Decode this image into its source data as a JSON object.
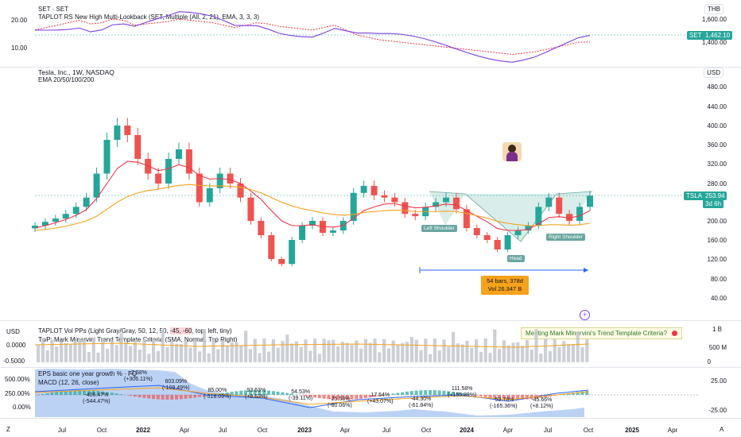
{
  "set_pane": {
    "title": "SET · SET",
    "indicator": "TAPLOT RS New High Multi-Lookback (SET, Multiple (All, 2, 21), EMA, 3, 3, 3)",
    "currency": "THB",
    "left_ticks": [
      "20.00",
      "10.00"
    ],
    "right_ticks": [
      "1,600.00",
      "1,400.00"
    ],
    "price_tag_symbol": "SET",
    "price_tag_value": "1,462.10"
  },
  "main_pane": {
    "title": "Tesla, Inc., 1W, NASDAQ",
    "subtitle": "EMA 20/50/100/200",
    "currency": "USD",
    "y_ticks": [
      "480.00",
      "440.00",
      "400.00",
      "360.00",
      "320.00",
      "280.00",
      "200.00",
      "160.00",
      "120.00",
      "80.00",
      "40.00"
    ],
    "price_tag_symbol": "TSLA",
    "price_tag_value": "253.94",
    "price_tag_time": "3d 6h",
    "annotations": {
      "left_shoulder": "Left Shoulder",
      "head": "Head",
      "right_shoulder": "Right Shoulder"
    },
    "range_info": {
      "bars": "54 bars, 378d",
      "vol": "Vol 26.347 B"
    }
  },
  "volume_pane": {
    "indicator": "TAPLOT Vol PPs (Light Gray/Gray, 50, 12, 50, -45, -60, top, left, tiny)",
    "indicator_parts": [
      "TAPLOT Vol PPs (Light Gray/Gray, 50, 12, 50, ",
      "-45, -60",
      ", top, left, tiny)"
    ],
    "subtitle": "TwP: Mark Minervini Trend Template Criteria (SMA, Normal, Top Right)",
    "left_currency": "USD",
    "left_ticks": [
      "0.0000",
      "-0.5000"
    ],
    "right_ticks": [
      "1 B",
      "500 M",
      "0"
    ],
    "minervini_text": "Meeting Mark Minervini's Trend Template Criteria?"
  },
  "eps_pane": {
    "title": "EPS basic one year growth % · FQ",
    "subtitle": "MACD (12, 26, close)",
    "left_ticks": [
      "500.00%",
      "250.00%",
      "0.00%"
    ],
    "right_ticks": [
      "25.00",
      "-25.00"
    ],
    "labels": [
      {
        "top": "-2.58%",
        "bottom": "(+306.11%)"
      },
      {
        "top": "-406.47%",
        "bottom": "(-544.47%)"
      },
      {
        "top": "603.09%",
        "bottom": "(-109.49%)"
      },
      {
        "top": "85.00%",
        "bottom": "(-518.09%)"
      },
      {
        "top": "93.63%",
        "bottom": "(+8.63%)"
      },
      {
        "top": "54.53%",
        "bottom": "(-39.11%)"
      },
      {
        "top": "-25.53%",
        "bottom": "(-80.06%)"
      },
      {
        "top": "17.54%",
        "bottom": "(+43.07%)"
      },
      {
        "top": "-44.30%",
        "bottom": "(-61.84%)"
      },
      {
        "top": "111.58%",
        "bottom": "(+155.89%)"
      },
      {
        "top": "-53.78%",
        "bottom": "(-165.36%)"
      },
      {
        "top": "-45.66%",
        "bottom": "(+8.12%)"
      }
    ]
  },
  "x_axis": {
    "ticks": [
      {
        "label": "Jul",
        "bold": false
      },
      {
        "label": "Oct",
        "bold": false
      },
      {
        "label": "2022",
        "bold": true
      },
      {
        "label": "Apr",
        "bold": false
      },
      {
        "label": "Jul",
        "bold": false
      },
      {
        "label": "Oct",
        "bold": false
      },
      {
        "label": "2023",
        "bold": true
      },
      {
        "label": "Apr",
        "bold": false
      },
      {
        "label": "Jul",
        "bold": false
      },
      {
        "label": "Oct",
        "bold": false
      },
      {
        "label": "2024",
        "bold": true
      },
      {
        "label": "Apr",
        "bold": false
      },
      {
        "label": "Jul",
        "bold": false
      },
      {
        "label": "Oct",
        "bold": false
      },
      {
        "label": "2025",
        "bold": true
      },
      {
        "label": "Apr",
        "bold": false
      }
    ],
    "corner_left": "Z",
    "corner_right": "A"
  },
  "chart_data": {
    "type": "line",
    "title": "Tesla, Inc., 1W, NASDAQ",
    "ylim": [
      40,
      500
    ],
    "series": [
      {
        "name": "TSLA",
        "color": "#26a69a",
        "values": [
          190,
          198,
          205,
          215,
          230,
          250,
          300,
          370,
          400,
          380,
          330,
          300,
          280,
          330,
          350,
          300,
          240,
          270,
          300,
          280,
          250,
          200,
          170,
          120,
          110,
          160,
          190,
          200,
          175,
          180,
          200,
          260,
          275,
          255,
          250,
          240,
          215,
          210,
          230,
          240,
          250,
          225,
          185,
          170,
          160,
          140,
          170,
          180,
          190,
          230,
          250,
          215,
          200,
          230,
          254
        ]
      },
      {
        "name": "EMA 20",
        "color": "#f23645",
        "values": [
          185,
          190,
          196,
          203,
          212,
          224,
          248,
          280,
          310,
          325,
          323,
          316,
          306,
          310,
          318,
          312,
          296,
          289,
          290,
          288,
          280,
          264,
          246,
          222,
          200,
          190,
          190,
          192,
          188,
          187,
          190,
          206,
          222,
          230,
          236,
          237,
          232,
          228,
          229,
          232,
          236,
          234,
          222,
          210,
          198,
          184,
          180,
          180,
          182,
          194,
          207,
          209,
          206,
          211,
          222
        ]
      },
      {
        "name": "EMA 50",
        "color": "#f7a21b",
        "values": [
          180,
          182,
          185,
          189,
          194,
          200,
          210,
          225,
          240,
          252,
          260,
          265,
          268,
          272,
          276,
          278,
          276,
          275,
          275,
          274,
          272,
          267,
          260,
          250,
          240,
          232,
          226,
          222,
          217,
          214,
          212,
          214,
          218,
          220,
          222,
          223,
          222,
          220,
          220,
          220,
          221,
          220,
          216,
          211,
          206,
          199,
          195,
          192,
          190,
          190,
          192,
          192,
          191,
          192,
          195
        ]
      }
    ],
    "set_index": {
      "values": [
        1560,
        1580,
        1600,
        1620,
        1640,
        1610,
        1620,
        1650,
        1640,
        1600,
        1610,
        1620,
        1630,
        1650,
        1640,
        1630,
        1620,
        1600,
        1580,
        1600,
        1620,
        1610,
        1590,
        1580,
        1570,
        1560,
        1580,
        1600,
        1560,
        1520,
        1500,
        1480,
        1470,
        1460,
        1450,
        1440,
        1430,
        1420,
        1410,
        1400,
        1390,
        1380,
        1370,
        1360,
        1370,
        1380,
        1400,
        1420,
        1440,
        1460,
        1462
      ]
    },
    "eps_growth": [
      {
        "label": "-2.58%",
        "change": "(+306.11%)"
      },
      {
        "label": "-406.47%",
        "change": "(-544.47%)"
      },
      {
        "label": "603.09%",
        "change": "(-109.49%)"
      },
      {
        "label": "85.00%",
        "change": "(-518.09%)"
      },
      {
        "label": "93.63%",
        "change": "(+8.63%)"
      },
      {
        "label": "54.53%",
        "change": "(-39.11%)"
      },
      {
        "label": "-25.53%",
        "change": "(-80.06%)"
      },
      {
        "label": "17.54%",
        "change": "(+43.07%)"
      },
      {
        "label": "-44.30%",
        "change": "(-61.84%)"
      },
      {
        "label": "111.58%",
        "change": "(+155.89%)"
      },
      {
        "label": "-53.78%",
        "change": "(-165.36%)"
      },
      {
        "label": "-45.66%",
        "change": "(+8.12%)"
      }
    ]
  }
}
